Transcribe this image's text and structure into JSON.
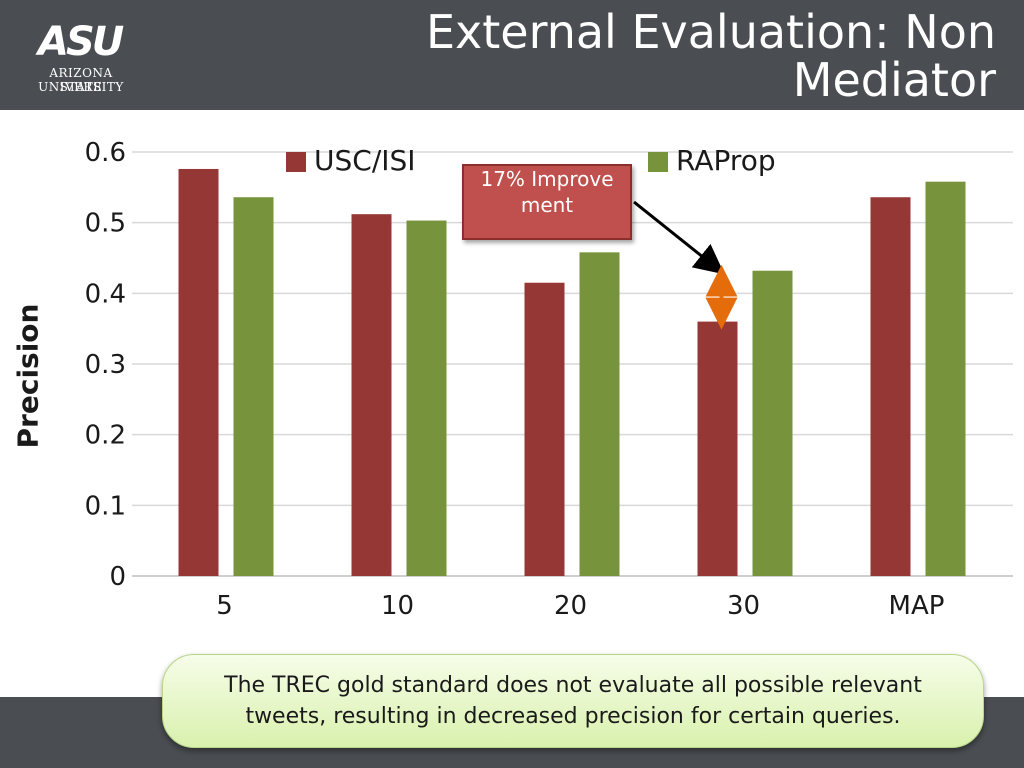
{
  "slide": {
    "title": "External Evaluation: Non Mediator",
    "logo": {
      "mark": "ASU",
      "line1": "Arizona State",
      "line2": "University"
    }
  },
  "callout": {
    "text": "17% Improvement"
  },
  "note": {
    "text": "The TREC gold standard does not evaluate all possible relevant tweets, resulting in decreased precision for certain queries."
  },
  "colors": {
    "usc_isi": "#953735",
    "raprop": "#77933c",
    "arrow": "#e46c0a",
    "callout_fill": "#c0504d"
  },
  "chart_data": {
    "type": "bar",
    "title": "",
    "xlabel": "",
    "ylabel": "Precision",
    "ylim": [
      0,
      0.6
    ],
    "yticks": [
      "0",
      "0.1",
      "0.2",
      "0.3",
      "0.4",
      "0.5",
      "0.6"
    ],
    "grid": true,
    "legend": "top",
    "categories": [
      "5",
      "10",
      "20",
      "30",
      "MAP"
    ],
    "series": [
      {
        "name": "USC/ISI",
        "values": [
          0.576,
          0.512,
          0.415,
          0.36,
          0.536
        ]
      },
      {
        "name": "RAProp",
        "values": [
          0.536,
          0.503,
          0.458,
          0.432,
          0.558
        ]
      }
    ]
  }
}
